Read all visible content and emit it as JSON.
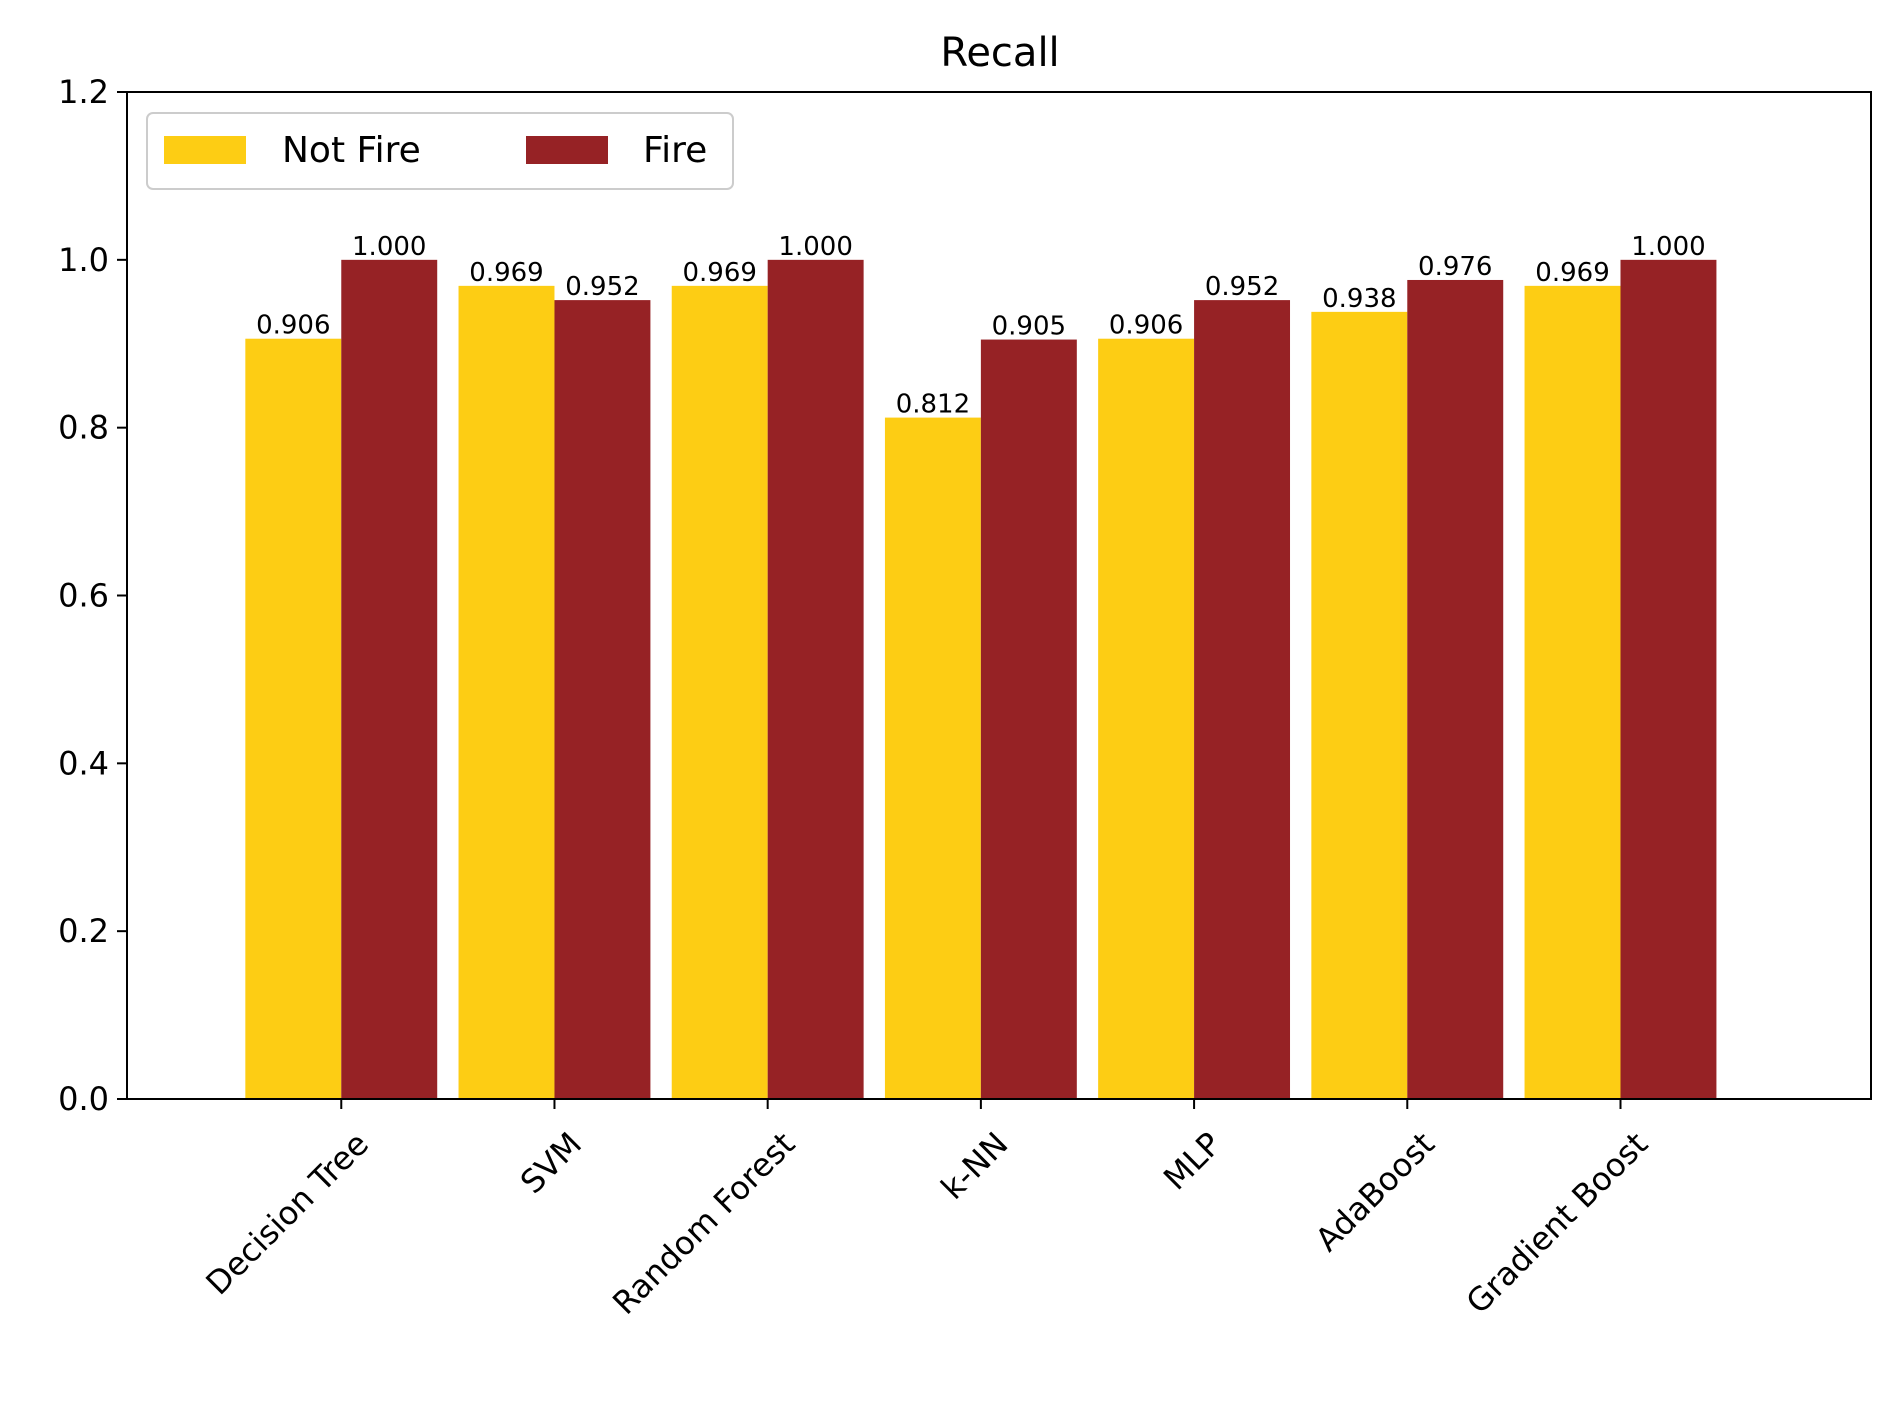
{
  "chart_data": {
    "type": "bar",
    "title": "Recall",
    "xlabel": "",
    "ylabel": "",
    "categories": [
      "Decision Tree",
      "SVM",
      "Random Forest",
      "k-NN",
      "MLP",
      "AdaBoost",
      "Gradient Boost"
    ],
    "series": [
      {
        "name": "Not Fire",
        "color": "#FDCD14",
        "values": [
          0.906,
          0.969,
          0.969,
          0.812,
          0.906,
          0.938,
          0.969
        ],
        "labels": [
          "0.906",
          "0.969",
          "0.969",
          "0.812",
          "0.906",
          "0.938",
          "0.969"
        ]
      },
      {
        "name": "Fire",
        "color": "#962225",
        "values": [
          1.0,
          0.952,
          1.0,
          0.905,
          0.952,
          0.976,
          1.0
        ],
        "labels": [
          "1.000",
          "0.952",
          "1.000",
          "0.905",
          "0.952",
          "0.976",
          "1.000"
        ]
      }
    ],
    "ylim": [
      0,
      1.2
    ],
    "yticks": [
      "0.0",
      "0.2",
      "0.4",
      "0.6",
      "0.8",
      "1.0",
      "1.2"
    ],
    "grid": false,
    "legend_position": "top-left",
    "legend_columns": 2
  }
}
